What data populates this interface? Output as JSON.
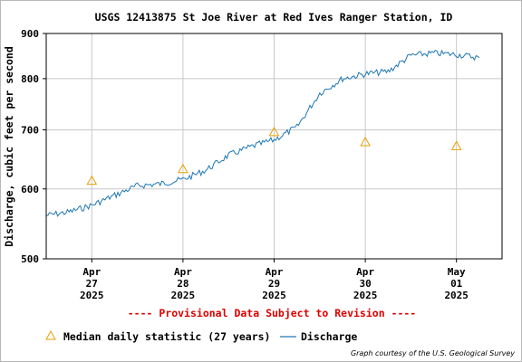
{
  "chart_data": {
    "type": "line",
    "title": "USGS 12413875 St Joe River at Red Ives Ranger Station, ID",
    "ylabel": "Discharge, cubic feet per second",
    "yscale": "log",
    "ylim": [
      500,
      900
    ],
    "yticks": [
      "900",
      "800",
      "700",
      "600",
      "500"
    ],
    "ytick_values": [
      900,
      800,
      700,
      600,
      500
    ],
    "xlim": [
      "2025-04-26T12:00",
      "2025-05-01T12:00"
    ],
    "xticks": [
      {
        "date": "2025-04-27",
        "line1": "Apr",
        "line2": "27",
        "line3": "2025"
      },
      {
        "date": "2025-04-28",
        "line1": "Apr",
        "line2": "28",
        "line3": "2025"
      },
      {
        "date": "2025-04-29",
        "line1": "Apr",
        "line2": "29",
        "line3": "2025"
      },
      {
        "date": "2025-04-30",
        "line1": "Apr",
        "line2": "30",
        "line3": "2025"
      },
      {
        "date": "2025-05-01",
        "line1": "May",
        "line2": "01",
        "line3": "2025"
      }
    ],
    "grid": true,
    "legend_placement": "bottom",
    "series": [
      {
        "name": "Discharge",
        "color": "#1f77b4",
        "style": "line",
        "x": [
          "2025-04-26T12:00",
          "2025-04-26T18:00",
          "2025-04-27T00:00",
          "2025-04-27T06:00",
          "2025-04-27T12:00",
          "2025-04-27T18:00",
          "2025-04-28T00:00",
          "2025-04-28T06:00",
          "2025-04-28T12:00",
          "2025-04-28T18:00",
          "2025-04-29T00:00",
          "2025-04-29T06:00",
          "2025-04-29T12:00",
          "2025-04-29T18:00",
          "2025-04-30T00:00",
          "2025-04-30T06:00",
          "2025-04-30T12:00",
          "2025-04-30T18:00",
          "2025-05-01T00:00",
          "2025-05-01T06:00"
        ],
        "y": [
          560,
          565,
          575,
          590,
          605,
          608,
          615,
          630,
          655,
          670,
          682,
          705,
          770,
          800,
          810,
          815,
          850,
          855,
          852,
          845
        ]
      },
      {
        "name": "Median daily statistic (27 years)",
        "color": "#e8a000",
        "style": "triangle",
        "x": [
          "2025-04-27",
          "2025-04-28",
          "2025-04-29",
          "2025-04-30",
          "2025-05-01"
        ],
        "y": [
          613,
          632,
          696,
          678,
          671
        ]
      }
    ]
  },
  "provisional_note": "---- Provisional Data Subject to Revision ----",
  "credit": "Graph courtesy of the U.S. Geological Survey"
}
